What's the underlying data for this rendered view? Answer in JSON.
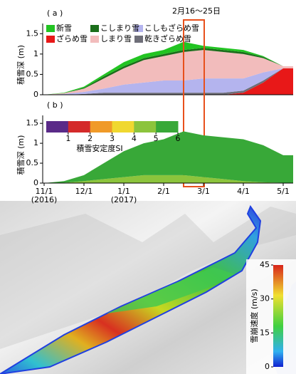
{
  "chart_data": [
    {
      "type": "stacked-area",
      "label": "( a )",
      "ylabel": "積雪深 (m)",
      "annotation": "2月16〜25日",
      "x": [
        "11/1",
        "11/16",
        "12/1",
        "12/16",
        "1/1",
        "1/16",
        "2/1",
        "2/16",
        "3/1",
        "3/16",
        "4/1",
        "4/16",
        "5/1"
      ],
      "ylim": [
        0,
        1.75
      ],
      "yticks": [
        0,
        0.5,
        1,
        1.5
      ],
      "series": [
        {
          "name": "ざらめ雪",
          "color": "#e81818",
          "values": [
            0,
            0,
            0,
            0,
            0,
            0,
            0,
            0,
            0,
            0,
            0.05,
            0.3,
            0.65
          ]
        },
        {
          "name": "乾きざらめ雪",
          "color": "#6e6e78",
          "values": [
            0,
            0,
            0.02,
            0.05,
            0.05,
            0.05,
            0.05,
            0.05,
            0.05,
            0.05,
            0.05,
            0.05,
            0
          ]
        },
        {
          "name": "こしもざらめ雪",
          "color": "#b4b4ee",
          "values": [
            0,
            0.02,
            0.05,
            0.1,
            0.2,
            0.25,
            0.3,
            0.3,
            0.35,
            0.35,
            0.3,
            0.2,
            0
          ]
        },
        {
          "name": "しまり雪",
          "color": "#f2bcbc",
          "values": [
            0,
            0.02,
            0.08,
            0.25,
            0.4,
            0.55,
            0.6,
            0.7,
            0.7,
            0.65,
            0.6,
            0.35,
            0.05
          ]
        },
        {
          "name": "こしまり雪",
          "color": "#1b6e1b",
          "values": [
            0,
            0,
            0.02,
            0.05,
            0.05,
            0.05,
            0.05,
            0.05,
            0.05,
            0.05,
            0.05,
            0.03,
            0
          ]
        },
        {
          "name": "新雪",
          "color": "#22c422",
          "values": [
            0,
            0.01,
            0.03,
            0.05,
            0.1,
            0.1,
            0.1,
            0.2,
            0.05,
            0.05,
            0.05,
            0.02,
            0
          ]
        }
      ]
    },
    {
      "type": "stacked-area",
      "label": "( b )",
      "ylabel": "積雪深 (m)",
      "x": [
        "11/1",
        "11/16",
        "12/1",
        "12/16",
        "1/1",
        "1/16",
        "2/1",
        "2/16",
        "3/1",
        "3/16",
        "4/1",
        "4/16",
        "5/1"
      ],
      "ylim": [
        0,
        1.7
      ],
      "yticks": [
        0,
        0.5,
        1,
        1.5
      ],
      "xticks": [
        "11/1",
        "12/1",
        "1/1",
        "2/1",
        "3/1",
        "4/1",
        "5/1"
      ],
      "year_labels": [
        {
          "at": "11/1",
          "label": "(2016)"
        },
        {
          "at": "1/1",
          "label": "(2017)"
        }
      ],
      "series": [
        {
          "color": "#8cc43c",
          "values": [
            0,
            0.01,
            0.05,
            0.1,
            0.15,
            0.2,
            0.2,
            0.2,
            0.15,
            0.1,
            0.05,
            0.02,
            0.01
          ]
        },
        {
          "color": "#38a838",
          "values": [
            0,
            0.04,
            0.15,
            0.4,
            0.65,
            0.8,
            0.9,
            1.1,
            1.05,
            1.05,
            1.05,
            0.93,
            0.69
          ]
        }
      ],
      "colorbar": {
        "label": "積雪安定度SI",
        "lim": [
          0,
          6
        ],
        "ticks": [
          1,
          2,
          3,
          4,
          5,
          6
        ],
        "colors": [
          "#5a2a88",
          "#d42a2a",
          "#f09a28",
          "#f0d830",
          "#8cc43c",
          "#38a838"
        ]
      }
    },
    {
      "type": "map",
      "colorbar": {
        "label": "雪崩速度 (m/s)",
        "lim": [
          0,
          45
        ],
        "ticks": [
          0,
          15,
          30,
          45
        ]
      }
    }
  ]
}
